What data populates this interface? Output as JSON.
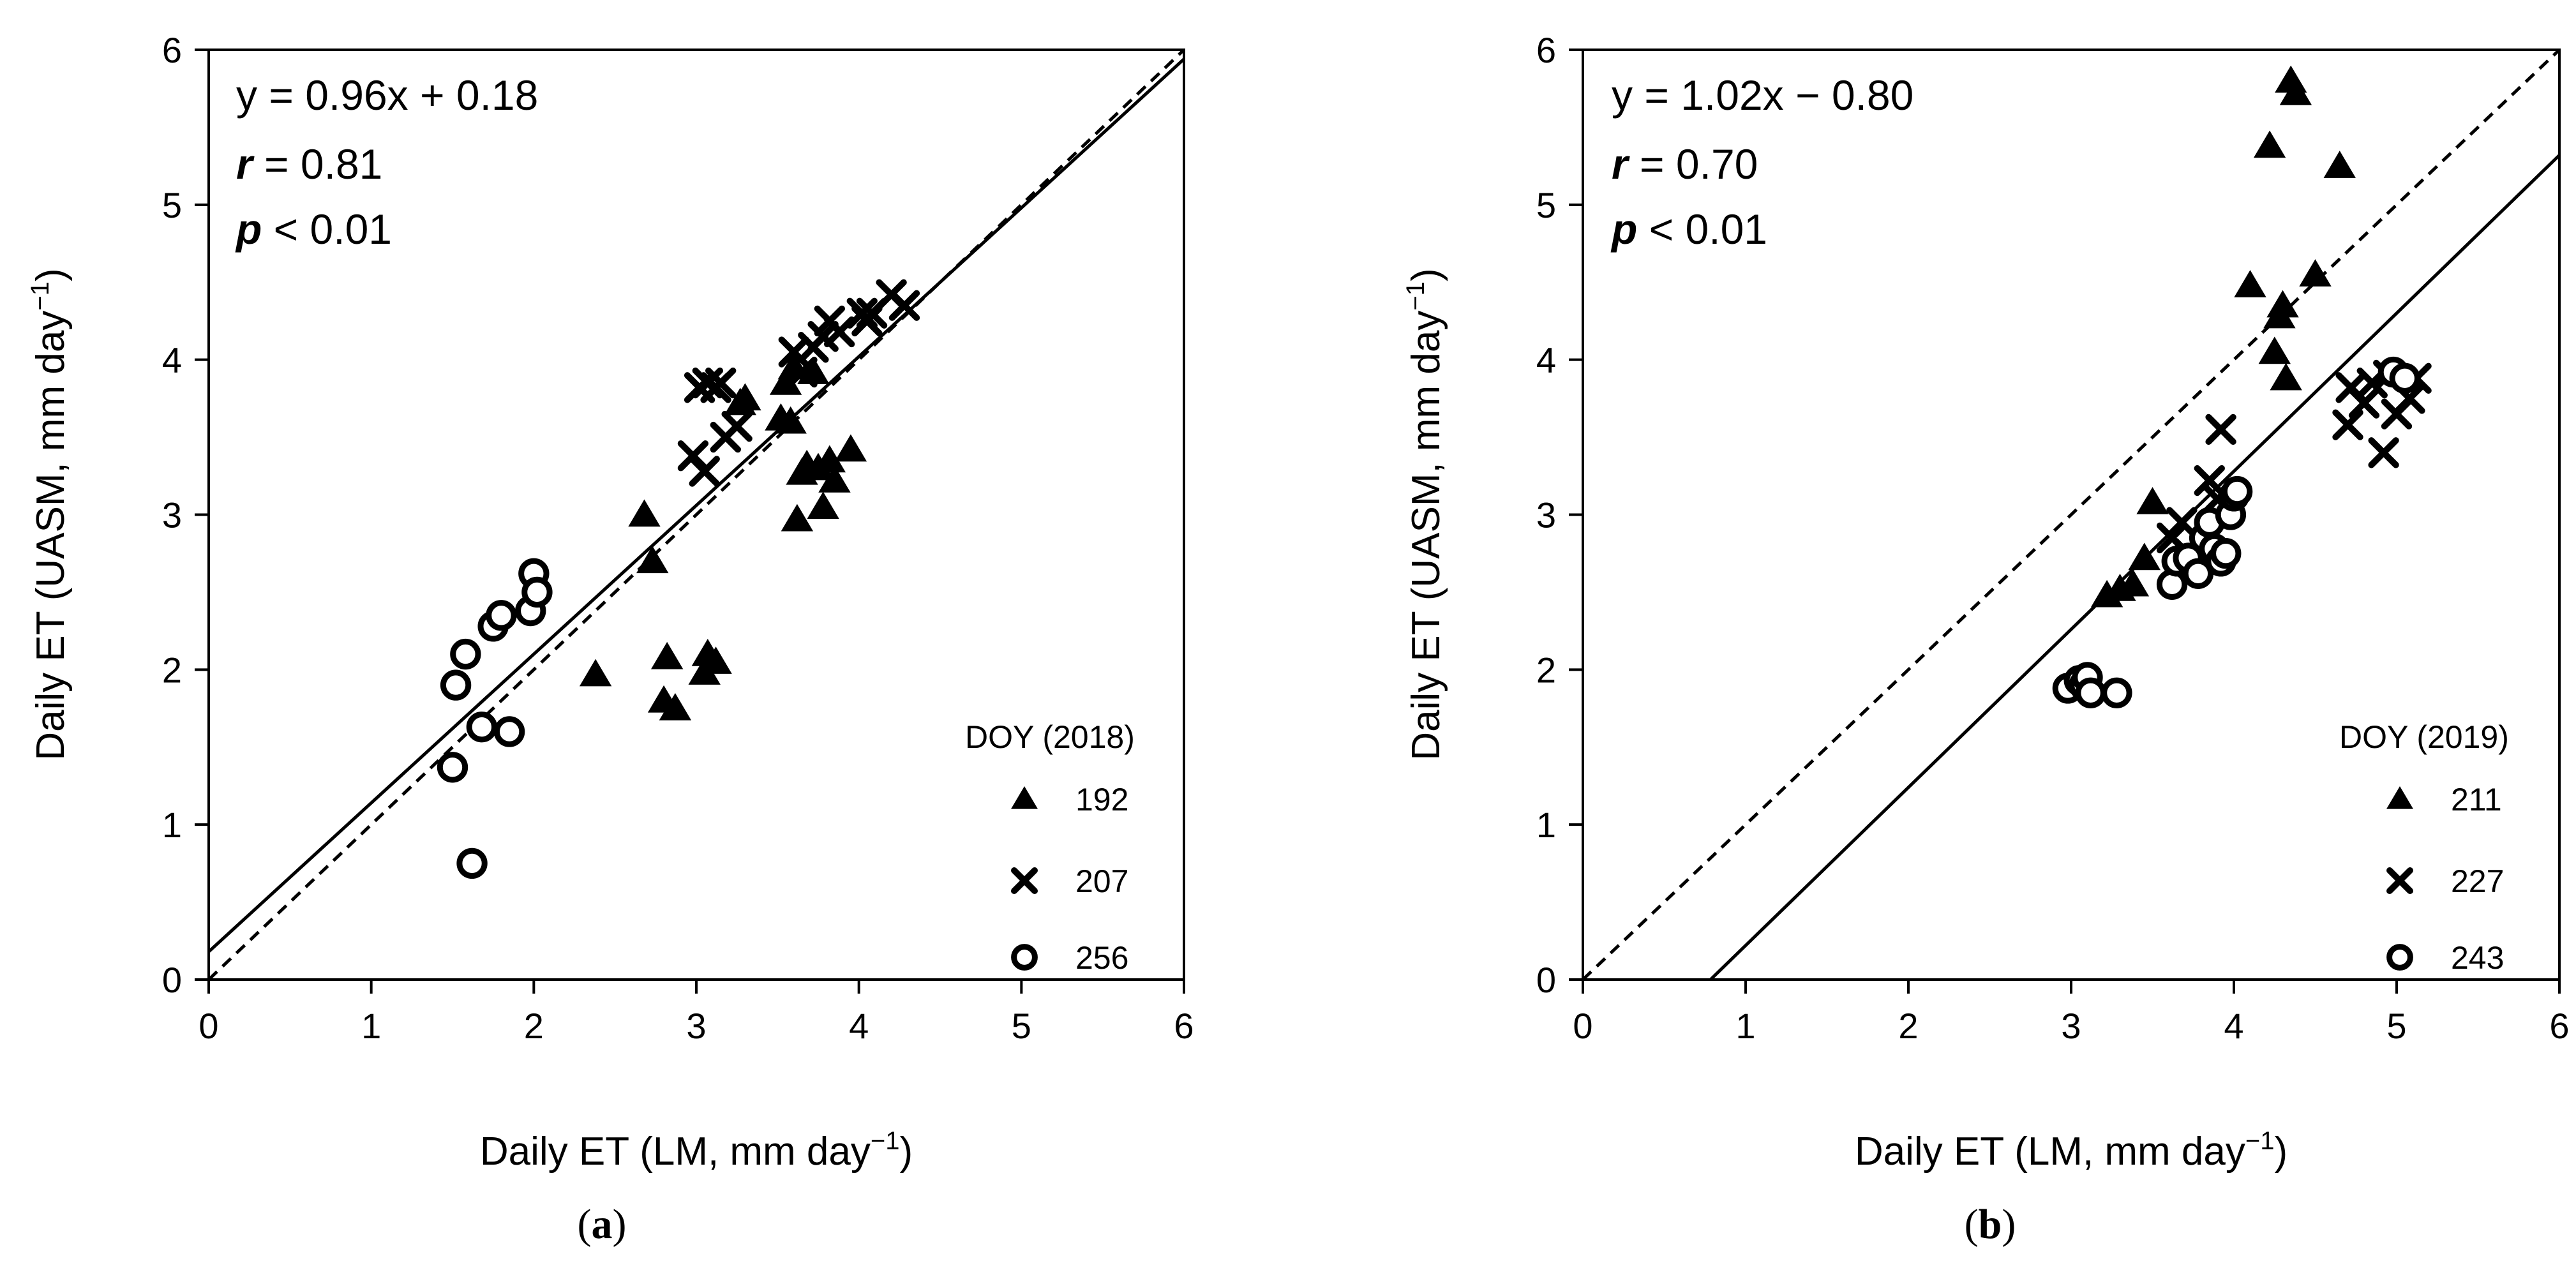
{
  "chart_data": [
    {
      "type": "scatter",
      "panel_label_open": "(",
      "panel_label_letter": "a",
      "panel_label_close": ")",
      "xlabel_pre": "Daily ET (LM, mm day",
      "xlabel_sup": "−1",
      "xlabel_post": ")",
      "ylabel_pre": "Daily ET (UASM, mm day",
      "ylabel_sup": "−1",
      "ylabel_post": ")",
      "xlim": [
        0,
        6
      ],
      "ylim": [
        0,
        6
      ],
      "xticks": [
        "0",
        "1",
        "2",
        "3",
        "4",
        "5",
        "6"
      ],
      "yticks": [
        "0",
        "1",
        "2",
        "3",
        "4",
        "5",
        "6"
      ],
      "equation": "y = 0.96x + 0.18",
      "r_symbol": "r",
      "r_value": " = 0.81",
      "p_symbol": "p",
      "p_value": " < 0.01",
      "legend_title": "DOY (2018)",
      "fit_line": {
        "slope": 0.96,
        "intercept": 0.18
      },
      "one_to_one_line": true,
      "series": [
        {
          "name": "192",
          "marker": "triangle",
          "points": [
            [
              2.68,
              3.0
            ],
            [
              2.73,
              2.7
            ],
            [
              2.38,
              1.97
            ],
            [
              2.8,
              1.8
            ],
            [
              2.82,
              2.08
            ],
            [
              2.87,
              1.75
            ],
            [
              3.05,
              1.98
            ],
            [
              3.07,
              2.1
            ],
            [
              3.12,
              2.05
            ],
            [
              3.27,
              3.72
            ],
            [
              3.3,
              3.75
            ],
            [
              3.52,
              3.62
            ],
            [
              3.55,
              3.85
            ],
            [
              3.58,
              3.6
            ],
            [
              3.6,
              3.95
            ],
            [
              3.62,
              2.97
            ],
            [
              3.65,
              3.27
            ],
            [
              3.68,
              3.32
            ],
            [
              3.72,
              3.92
            ],
            [
              3.75,
              3.3
            ],
            [
              3.78,
              3.05
            ],
            [
              3.82,
              3.35
            ],
            [
              3.85,
              3.22
            ],
            [
              3.95,
              3.42
            ]
          ]
        },
        {
          "name": "207",
          "marker": "x",
          "points": [
            [
              2.98,
              3.38
            ],
            [
              3.02,
              3.82
            ],
            [
              3.05,
              3.28
            ],
            [
              3.07,
              3.85
            ],
            [
              3.12,
              3.82
            ],
            [
              3.15,
              3.85
            ],
            [
              3.18,
              3.5
            ],
            [
              3.25,
              3.57
            ],
            [
              3.6,
              4.05
            ],
            [
              3.65,
              3.92
            ],
            [
              3.72,
              4.08
            ],
            [
              3.78,
              4.15
            ],
            [
              3.82,
              4.25
            ],
            [
              3.88,
              4.18
            ],
            [
              4.02,
              4.3
            ],
            [
              4.05,
              4.25
            ],
            [
              4.08,
              4.3
            ],
            [
              4.2,
              4.42
            ],
            [
              4.28,
              4.35
            ]
          ]
        },
        {
          "name": "256",
          "marker": "circle",
          "points": [
            [
              1.5,
              1.37
            ],
            [
              1.52,
              1.9
            ],
            [
              1.58,
              2.1
            ],
            [
              1.62,
              0.75
            ],
            [
              1.68,
              1.63
            ],
            [
              1.75,
              2.28
            ],
            [
              1.8,
              2.35
            ],
            [
              1.85,
              1.6
            ],
            [
              1.98,
              2.38
            ],
            [
              2.0,
              2.62
            ],
            [
              2.02,
              2.5
            ]
          ]
        }
      ]
    },
    {
      "type": "scatter",
      "panel_label_open": "(",
      "panel_label_letter": "b",
      "panel_label_close": ")",
      "xlabel_pre": "Daily ET (LM, mm day",
      "xlabel_sup": "−1",
      "xlabel_post": ")",
      "ylabel_pre": "Daily ET (UASM, mm day",
      "ylabel_sup": "−1",
      "ylabel_post": ")",
      "xlim": [
        0,
        6
      ],
      "ylim": [
        0,
        6
      ],
      "xticks": [
        "0",
        "1",
        "2",
        "3",
        "4",
        "5",
        "6"
      ],
      "yticks": [
        "0",
        "1",
        "2",
        "3",
        "4",
        "5",
        "6"
      ],
      "equation": "y = 1.02x − 0.80",
      "r_symbol": "r",
      "r_value": " = 0.70",
      "p_symbol": "p",
      "p_value": " < 0.01",
      "legend_title": "DOY (2019)",
      "fit_line": {
        "slope": 1.02,
        "intercept": -0.8
      },
      "one_to_one_line": true,
      "series": [
        {
          "name": "211",
          "marker": "triangle",
          "points": [
            [
              3.22,
              2.48
            ],
            [
              3.3,
              2.52
            ],
            [
              3.38,
              2.55
            ],
            [
              3.45,
              2.72
            ],
            [
              3.5,
              3.08
            ],
            [
              4.1,
              4.48
            ],
            [
              4.22,
              5.38
            ],
            [
              4.25,
              4.05
            ],
            [
              4.28,
              4.28
            ],
            [
              4.3,
              4.35
            ],
            [
              4.32,
              3.88
            ],
            [
              4.35,
              5.8
            ],
            [
              4.38,
              5.72
            ],
            [
              4.5,
              4.55
            ],
            [
              4.65,
              5.25
            ]
          ]
        },
        {
          "name": "227",
          "marker": "x",
          "points": [
            [
              3.62,
              2.85
            ],
            [
              3.68,
              2.95
            ],
            [
              3.72,
              2.75
            ],
            [
              3.85,
              3.22
            ],
            [
              3.92,
              3.55
            ],
            [
              3.9,
              3.1
            ],
            [
              4.7,
              3.58
            ],
            [
              4.72,
              3.82
            ],
            [
              4.8,
              3.72
            ],
            [
              4.85,
              3.85
            ],
            [
              4.92,
              3.4
            ],
            [
              4.95,
              3.9
            ],
            [
              5.0,
              3.65
            ],
            [
              5.08,
              3.75
            ],
            [
              5.12,
              3.88
            ]
          ]
        },
        {
          "name": "243",
          "marker": "circle",
          "points": [
            [
              2.98,
              1.88
            ],
            [
              3.05,
              1.93
            ],
            [
              3.08,
              1.9
            ],
            [
              3.1,
              1.95
            ],
            [
              3.12,
              1.85
            ],
            [
              3.28,
              1.85
            ],
            [
              3.62,
              2.55
            ],
            [
              3.65,
              2.7
            ],
            [
              3.72,
              2.72
            ],
            [
              3.78,
              2.62
            ],
            [
              3.82,
              2.85
            ],
            [
              3.85,
              2.95
            ],
            [
              3.88,
              2.78
            ],
            [
              3.92,
              2.7
            ],
            [
              3.95,
              2.75
            ],
            [
              3.98,
              3.0
            ],
            [
              4.0,
              3.12
            ],
            [
              4.02,
              3.15
            ],
            [
              4.98,
              3.92
            ],
            [
              5.05,
              3.88
            ]
          ]
        }
      ]
    }
  ]
}
